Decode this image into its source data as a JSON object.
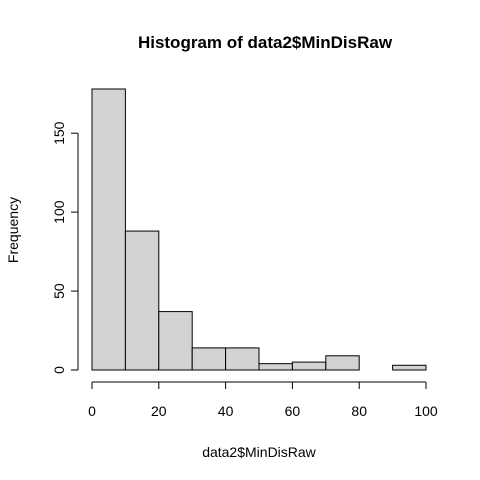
{
  "chart_data": {
    "type": "bar",
    "title": "Histogram of data2$MinDisRaw",
    "xlabel": "data2$MinDisRaw",
    "ylabel": "Frequency",
    "bins": [
      {
        "start": 0,
        "end": 10,
        "count": 178
      },
      {
        "start": 10,
        "end": 20,
        "count": 88
      },
      {
        "start": 20,
        "end": 30,
        "count": 37
      },
      {
        "start": 30,
        "end": 40,
        "count": 14
      },
      {
        "start": 40,
        "end": 50,
        "count": 14
      },
      {
        "start": 50,
        "end": 60,
        "count": 4
      },
      {
        "start": 60,
        "end": 70,
        "count": 5
      },
      {
        "start": 70,
        "end": 80,
        "count": 9
      },
      {
        "start": 80,
        "end": 90,
        "count": 0
      },
      {
        "start": 90,
        "end": 100,
        "count": 3
      }
    ],
    "xlim": [
      0,
      100
    ],
    "ylim": [
      0,
      178
    ],
    "xticks": [
      0,
      20,
      40,
      60,
      80,
      100
    ],
    "yticks": [
      0,
      50,
      100,
      150
    ],
    "bar_color": "#d3d3d3",
    "grid": false
  }
}
